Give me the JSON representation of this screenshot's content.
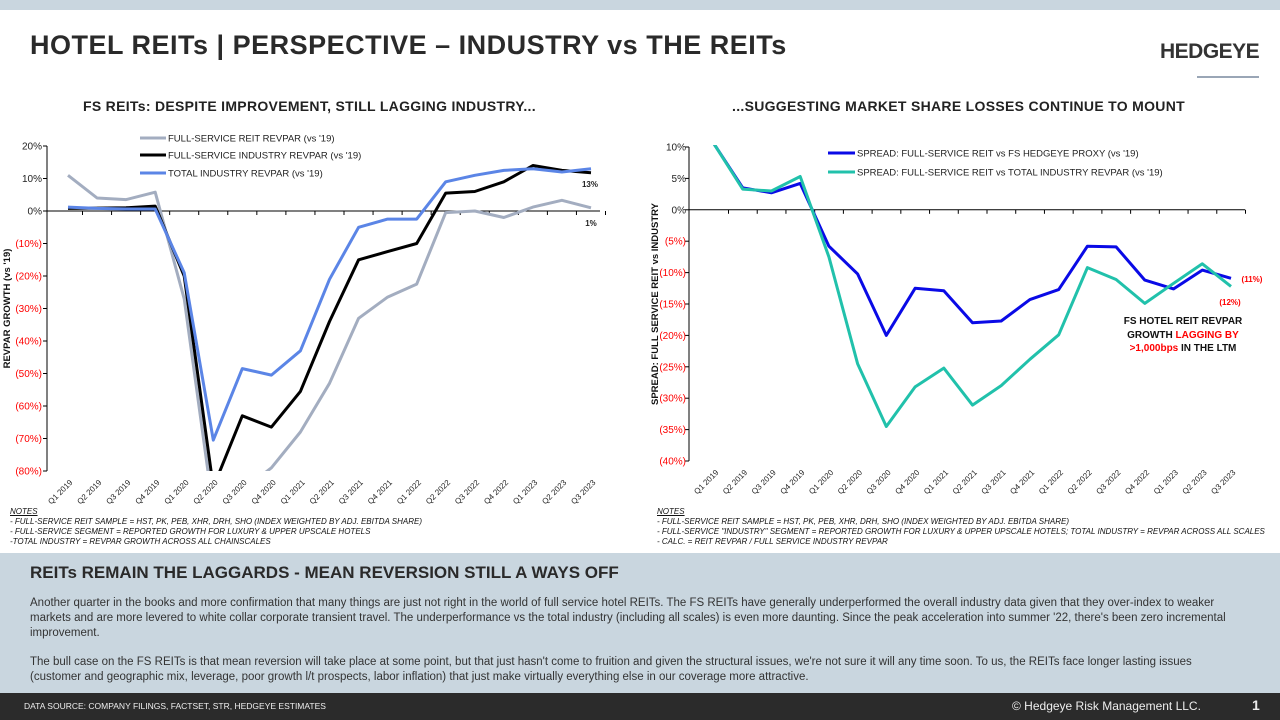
{
  "header": {
    "title": "HOTEL REITs | PERSPECTIVE – INDUSTRY vs THE REITs",
    "logo": "HEDGEYE"
  },
  "colors": {
    "reit": "#a3adc0",
    "fs_industry": "#000000",
    "total_industry": "#5b85e6",
    "spread_proxy": "#0a0ae6",
    "spread_total": "#21c1ab",
    "negative_label": "#ff0000"
  },
  "chart_data": [
    {
      "type": "line",
      "title": "FS REITs: DESPITE IMPROVEMENT, STILL LAGGING INDUSTRY...",
      "ylabel": "REVPAR GROWTH (vs '19)",
      "xlabel": "",
      "ylim": [
        -80,
        20
      ],
      "yticks": [
        20,
        10,
        0,
        -10,
        -20,
        -30,
        -40,
        -50,
        -60,
        -70,
        -80
      ],
      "ytick_labels": [
        "20%",
        "10%",
        "0%",
        "(10%)",
        "(20%)",
        "(30%)",
        "(40%)",
        "(50%)",
        "(60%)",
        "(70%)",
        "(80%)"
      ],
      "categories": [
        "Q1 2019",
        "Q2 2019",
        "Q3 2019",
        "Q4 2019",
        "Q1 2020",
        "Q2 2020",
        "Q3 2020",
        "Q4 2020",
        "Q1 2021",
        "Q2 2021",
        "Q3 2021",
        "Q4 2021",
        "Q1 2022",
        "Q2 2022",
        "Q3 2022",
        "Q4 2022",
        "Q1 2023",
        "Q2 2023",
        "Q3 2023"
      ],
      "legend": "top-center",
      "series": [
        {
          "name": "FULL-SERVICE REIT REVPAR (vs '19)",
          "color_key": "reit",
          "values": [
            11,
            4,
            3.5,
            5.8,
            -27,
            -92,
            -86,
            -79,
            -68,
            -53,
            -33,
            -26.5,
            -22.5,
            -0.5,
            0,
            -2,
            1.2,
            3.3,
            1
          ]
        },
        {
          "name": "FULL-SERVICE INDUSTRY REVPAR (vs '19)",
          "color_key": "fs_industry",
          "values": [
            0.8,
            0.9,
            1,
            1.5,
            -20,
            -85,
            -63,
            -66.5,
            -55.5,
            -34,
            -15,
            -12.5,
            -10,
            5.5,
            6,
            9,
            14,
            12.5,
            11.8
          ]
        },
        {
          "name": "TOTAL INDUSTRY REVPAR (vs '19)",
          "color_key": "total_industry",
          "values": [
            1.2,
            0.8,
            0.6,
            0.6,
            -19,
            -70.5,
            -48.5,
            -50.5,
            -43,
            -21,
            -5,
            -2.5,
            -2.5,
            9,
            11,
            12.5,
            13,
            12,
            13
          ]
        }
      ],
      "annotations": [
        "13%",
        "1%"
      ],
      "notes": [
        "NOTES",
        "- FULL-SERVICE REIT SAMPLE = HST, PK, PEB, XHR, DRH, SHO (INDEX WEIGHTED BY ADJ. EBITDA SHARE)",
        "- FULL-SERVICE SEGMENT = REPORTED GROWTH FOR LUXURY & UPPER UPSCALE HOTELS",
        "-TOTAL INDUSTRY = REVPAR GROWTH ACROSS ALL CHAINSCALES"
      ]
    },
    {
      "type": "line",
      "title": "...SUGGESTING MARKET SHARE LOSSES CONTINUE TO MOUNT",
      "ylabel": "SPREAD: FULL SERVICE REIT vs INDUSTRY",
      "xlabel": "",
      "ylim": [
        -40,
        10
      ],
      "yticks": [
        10,
        5,
        0,
        -5,
        -10,
        -15,
        -20,
        -25,
        -30,
        -35,
        -40
      ],
      "ytick_labels": [
        "10%",
        "5%",
        "0%",
        "(5%)",
        "(10%)",
        "(15%)",
        "(20%)",
        "(25%)",
        "(30%)",
        "(35%)",
        "(40%)"
      ],
      "categories": [
        "Q1 2019",
        "Q2 2019",
        "Q3 2019",
        "Q4 2019",
        "Q1 2020",
        "Q2 2020",
        "Q3 2020",
        "Q4 2020",
        "Q1 2021",
        "Q2 2021",
        "Q3 2021",
        "Q4 2021",
        "Q1 2022",
        "Q2 2022",
        "Q3 2022",
        "Q4 2022",
        "Q1 2023",
        "Q2 2023",
        "Q3 2023"
      ],
      "legend": "top-center",
      "series": [
        {
          "name": "SPREAD: FULL-SERVICE REIT vs FS HEDGEYE PROXY (vs '19)",
          "color_key": "spread_proxy",
          "values": [
            10.5,
            3.5,
            2.7,
            4.2,
            -5.8,
            -10.2,
            -20,
            -12.5,
            -12.9,
            -18,
            -17.7,
            -14.3,
            -12.7,
            -5.8,
            -5.9,
            -11.2,
            -12.6,
            -9.6,
            -10.9
          ]
        },
        {
          "name": "SPREAD: FULL-SERVICE REIT vs TOTAL INDUSTRY REVPAR (vs '19)",
          "color_key": "spread_total",
          "values": [
            10.5,
            3.3,
            3,
            5.3,
            -7.5,
            -24.5,
            -34.5,
            -28.2,
            -25.2,
            -31.1,
            -28,
            -23.8,
            -19.9,
            -9.2,
            -11.1,
            -14.9,
            -11.7,
            -8.6,
            -12.2
          ]
        }
      ],
      "annotations": [
        "(11%)",
        "(12%)"
      ],
      "callout": {
        "line1": "FS HOTEL REIT REVPAR",
        "line2_a": "GROWTH ",
        "line2_b": "LAGGING BY",
        "line3_a": ">1,000bps",
        "line3_b": " IN THE LTM"
      },
      "notes": [
        "NOTES",
        "- FULL-SERVICE REIT SAMPLE = HST, PK, PEB, XHR, DRH, SHO (INDEX WEIGHTED BY ADJ. EBITDA SHARE)",
        "- FULL-SERVICE \"INDUSTRY\" SEGMENT = REPORTED GROWTH FOR LUXURY & UPPER UPSCALE HOTELS;  TOTAL INDUSTRY = REVPAR ACROSS ALL SCALES",
        "- CALC. = REIT REVPAR / FULL SERVICE INDUSTRY REVPAR"
      ]
    }
  ],
  "summary": {
    "heading": "REITs REMAIN THE LAGGARDS - MEAN REVERSION STILL A WAYS OFF",
    "p1": "Another quarter in the books and more confirmation that many things are just not right in the world of full service hotel REITs. The FS REITs have generally underperformed the overall industry data given that they over-index to weaker markets and are more levered to white collar corporate transient travel. The underperformance vs the total industry (including all scales) is even more daunting. Since the peak acceleration into summer '22, there's been zero incremental improvement.",
    "p2": "The bull case on the FS REITs is that mean reversion will take place at some point, but that just hasn't come to fruition and given the structural issues, we're not sure it will any time soon. To us, the REITs face longer lasting issues (customer and geographic mix, leverage, poor growth l/t prospects, labor inflation) that just make virtually everything else in our coverage more attractive."
  },
  "footer": {
    "source": "DATA SOURCE: COMPANY FILINGS, FACTSET, STR, HEDGEYE ESTIMATES",
    "copyright": "© Hedgeye Risk Management LLC.",
    "page": "1"
  }
}
